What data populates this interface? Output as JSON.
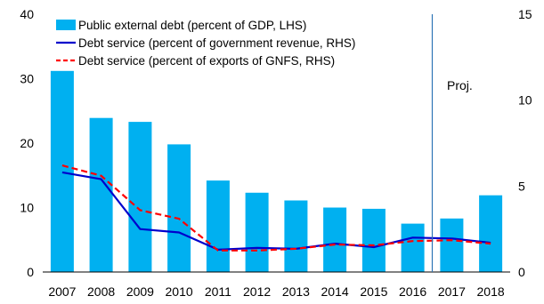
{
  "chart_data": {
    "type": "bar",
    "categories": [
      "2007",
      "2008",
      "2009",
      "2010",
      "2011",
      "2012",
      "2013",
      "2014",
      "2015",
      "2016",
      "2017",
      "2018"
    ],
    "left_axis": {
      "ylim": [
        0,
        40
      ],
      "ticks": [
        "0",
        "10",
        "20",
        "30",
        "40"
      ]
    },
    "right_axis": {
      "ylim": [
        0,
        15
      ],
      "ticks": [
        "0",
        "5",
        "10",
        "15"
      ]
    },
    "series": [
      {
        "name": "Public external debt (percent of GDP, LHS)",
        "kind": "bar",
        "axis": "left",
        "color": "#00B0F0",
        "values": [
          31.2,
          23.9,
          23.3,
          19.8,
          14.2,
          12.3,
          11.1,
          10.0,
          9.8,
          7.5,
          8.3,
          11.9
        ]
      },
      {
        "name": "Debt service (percent of government revenue, RHS)",
        "kind": "line",
        "axis": "right",
        "color": "#0000CC",
        "dash": "solid",
        "values": [
          5.8,
          5.4,
          2.5,
          2.3,
          1.3,
          1.4,
          1.35,
          1.65,
          1.45,
          2.0,
          1.95,
          1.7
        ]
      },
      {
        "name": "Debt service (percent of exports of GNFS, RHS)",
        "kind": "line",
        "axis": "right",
        "color": "#FF0000",
        "dash": "dashed",
        "values": [
          6.2,
          5.6,
          3.6,
          3.1,
          1.25,
          1.25,
          1.35,
          1.6,
          1.55,
          1.8,
          1.85,
          1.65
        ]
      }
    ],
    "annotation": "Proj.",
    "projection_divider_after": "2016",
    "legend_position": "top-left",
    "grid": false
  }
}
